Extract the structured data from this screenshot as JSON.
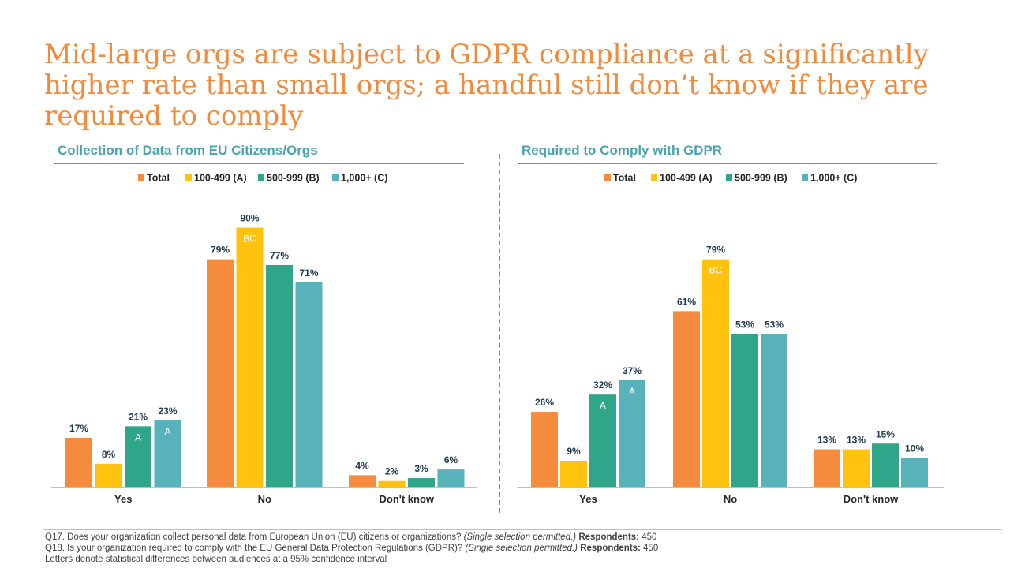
{
  "title": "Mid-large orgs are subject to GDPR compliance at a significantly higher rate than small orgs; a handful still don’t know if they are required to comply",
  "colors": {
    "title": "#F08A3C",
    "panel_title": "#4AA3AE",
    "panel_line": "#4AA3AE",
    "axis": "#BFBFBF",
    "label": "#1F3A4D",
    "sig_letter": "#FFFFFF",
    "footer_line": "#BFBFBF",
    "series": [
      "#F58B3C",
      "#FFC20E",
      "#2FA58A",
      "#57B2BB"
    ]
  },
  "footer": {
    "q17_text": "Q17. Does your organization collect personal data from European Union (EU) citizens or organizations?",
    "q17_note": "(Single selection permitted.)",
    "q17_resp_label": "Respondents:",
    "q17_resp_value": "450",
    "q18_text": "Q18. Is your organization required to comply with the EU General Data Protection Regulations (GDPR)?",
    "q18_note": "(Single selection permitted.)",
    "q18_resp_label": "Respondents:",
    "q18_resp_value": "450",
    "note": "Letters denote statistical differences between audiences at a 95% confidence interval"
  },
  "chart_data": [
    {
      "type": "bar",
      "title": "Collection of Data from EU Citizens/Orgs",
      "categories": [
        "Yes",
        "No",
        "Don't know"
      ],
      "legend_position": "top",
      "ylim": [
        0,
        100
      ],
      "grid": false,
      "series": [
        {
          "name": "Total",
          "values": [
            17,
            79,
            4
          ],
          "labels": [
            "17%",
            "79%",
            "4%"
          ],
          "sig": [
            "",
            "",
            ""
          ]
        },
        {
          "name": "100-499 (A)",
          "values": [
            8,
            90,
            2
          ],
          "labels": [
            "8%",
            "90%",
            "2%"
          ],
          "sig": [
            "",
            "BC",
            ""
          ]
        },
        {
          "name": "500-999 (B)",
          "values": [
            21,
            77,
            3
          ],
          "labels": [
            "21%",
            "77%",
            "3%"
          ],
          "sig": [
            "A",
            "",
            ""
          ]
        },
        {
          "name": "1,000+ (C)",
          "values": [
            23,
            71,
            6
          ],
          "labels": [
            "23%",
            "71%",
            "6%"
          ],
          "sig": [
            "A",
            "",
            ""
          ]
        }
      ]
    },
    {
      "type": "bar",
      "title": "Required to Comply with GDPR",
      "categories": [
        "Yes",
        "No",
        "Don't know"
      ],
      "legend_position": "top",
      "ylim": [
        0,
        100
      ],
      "grid": false,
      "series": [
        {
          "name": "Total",
          "values": [
            26,
            61,
            13
          ],
          "labels": [
            "26%",
            "61%",
            "13%"
          ],
          "sig": [
            "",
            "",
            ""
          ]
        },
        {
          "name": "100-499 (A)",
          "values": [
            9,
            79,
            13
          ],
          "labels": [
            "9%",
            "79%",
            "13%"
          ],
          "sig": [
            "",
            "BC",
            ""
          ]
        },
        {
          "name": "500-999 (B)",
          "values": [
            32,
            53,
            15
          ],
          "labels": [
            "32%",
            "53%",
            "15%"
          ],
          "sig": [
            "A",
            "",
            ""
          ]
        },
        {
          "name": "1,000+ (C)",
          "values": [
            37,
            53,
            10
          ],
          "labels": [
            "37%",
            "53%",
            "10%"
          ],
          "sig": [
            "A",
            "",
            ""
          ]
        }
      ]
    }
  ]
}
